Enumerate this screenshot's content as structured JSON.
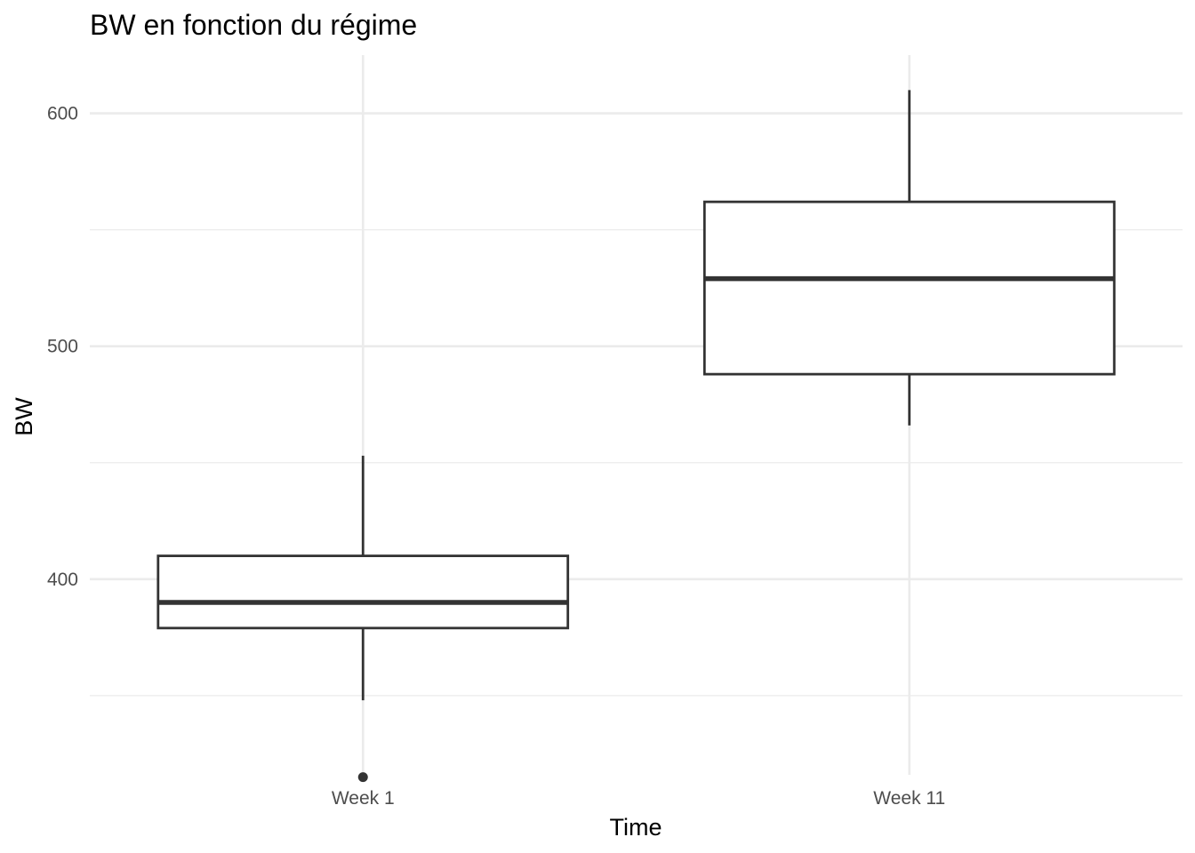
{
  "chart_data": {
    "type": "boxplot",
    "title": "BW en fonction du régime",
    "xlabel": "Time",
    "ylabel": "BW",
    "categories": [
      "Week 1",
      "Week 11"
    ],
    "ylim": [
      316,
      625
    ],
    "yticks": [
      400,
      500,
      600
    ],
    "y_minor_ticks": [
      350,
      450,
      550
    ],
    "grid": true,
    "boxes": [
      {
        "category": "Week 1",
        "lower_whisker": 348,
        "q1": 379,
        "median": 390,
        "q3": 410,
        "upper_whisker": 453,
        "outliers": [
          315
        ]
      },
      {
        "category": "Week 11",
        "lower_whisker": 466,
        "q1": 488,
        "median": 529,
        "q3": 562,
        "upper_whisker": 610,
        "outliers": []
      }
    ]
  }
}
